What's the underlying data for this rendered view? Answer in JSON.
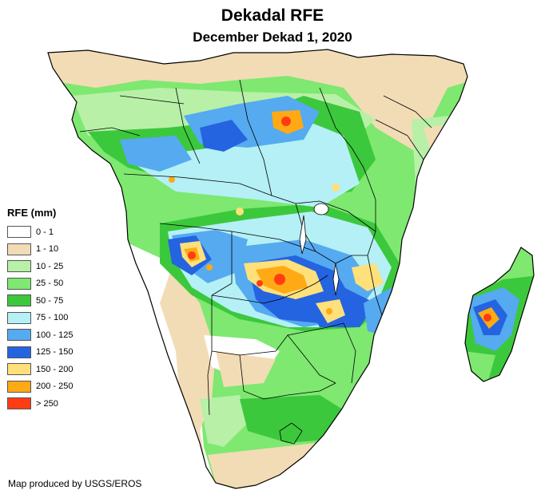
{
  "map": {
    "title": "Dekadal RFE",
    "subtitle": "December Dekad 1, 2020",
    "credit": "Map produced by USGS/EROS"
  },
  "legend": {
    "title": "RFE (mm)",
    "items": [
      {
        "label": "0 - 1",
        "color": "#ffffff"
      },
      {
        "label": "1 - 10",
        "color": "#f2dcb5"
      },
      {
        "label": "10 - 25",
        "color": "#b8f0a8"
      },
      {
        "label": "25 - 50",
        "color": "#7ee870"
      },
      {
        "label": "50 - 75",
        "color": "#3cc83c"
      },
      {
        "label": "75 - 100",
        "color": "#b4f0f5"
      },
      {
        "label": "100 - 125",
        "color": "#55aaf0"
      },
      {
        "label": "125 - 150",
        "color": "#2464e0"
      },
      {
        "label": "150 - 200",
        "color": "#ffe07a"
      },
      {
        "label": "200 - 250",
        "color": "#ffaa14"
      },
      {
        "label": "> 250",
        "color": "#ff3c14"
      }
    ]
  }
}
